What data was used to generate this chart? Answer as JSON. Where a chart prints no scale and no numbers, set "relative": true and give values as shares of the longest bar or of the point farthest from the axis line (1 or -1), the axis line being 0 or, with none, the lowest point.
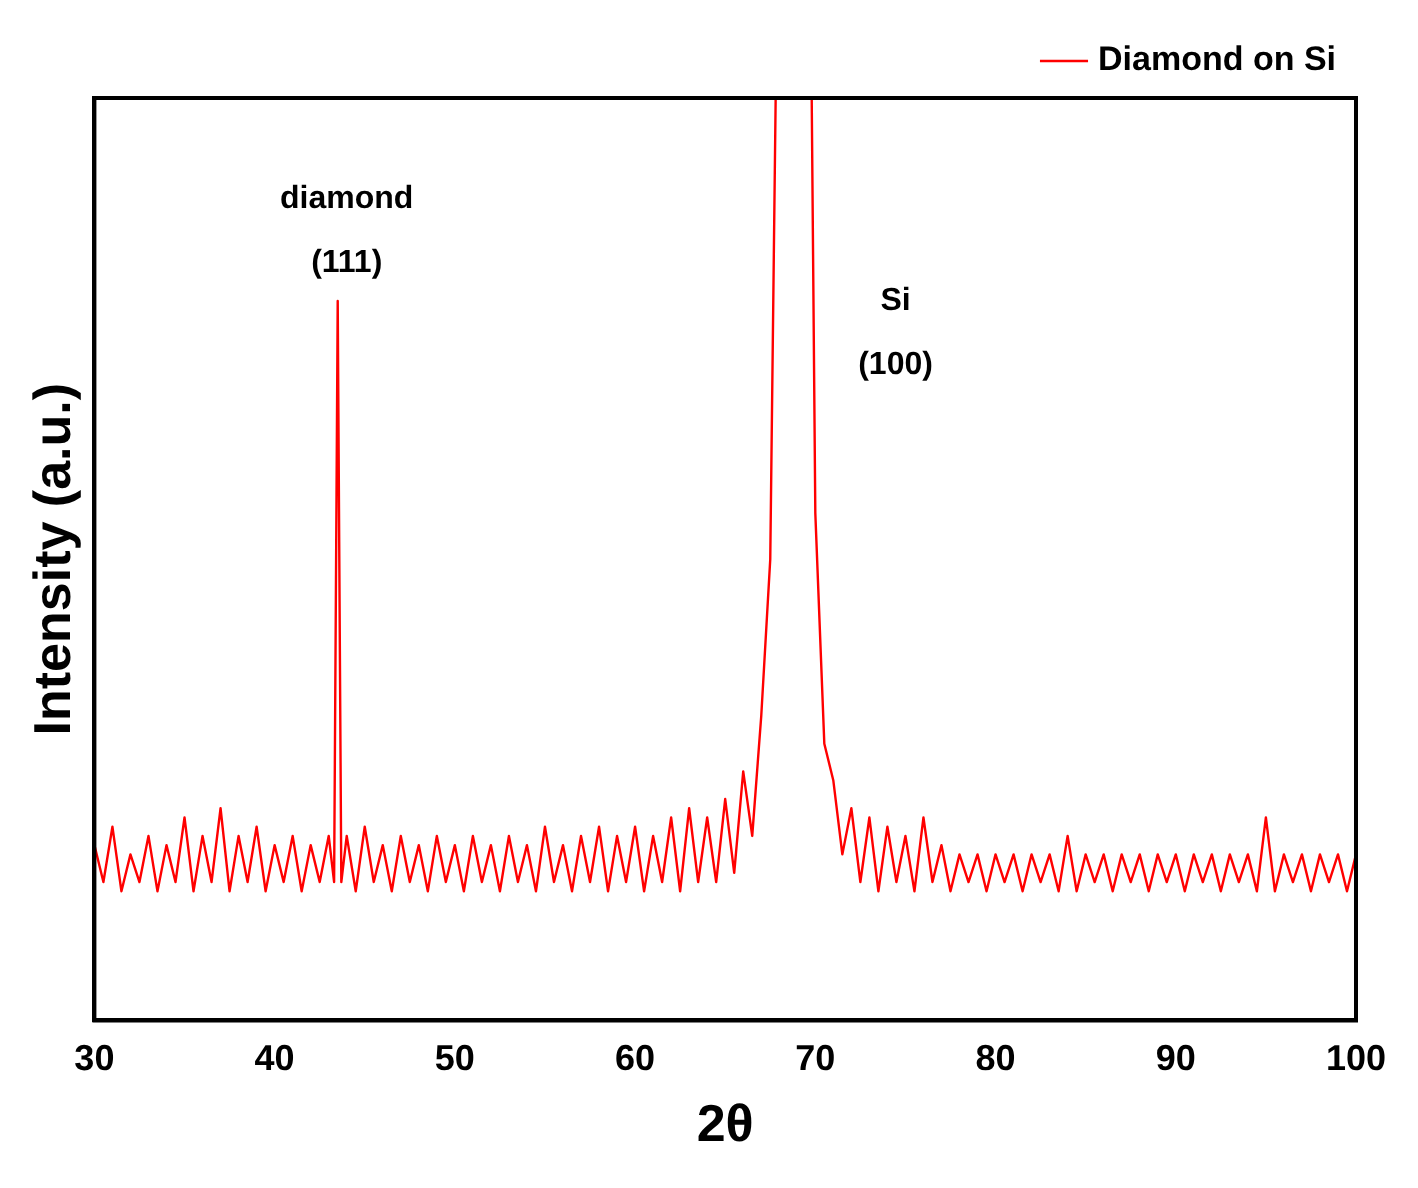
{
  "chart_data": {
    "type": "line",
    "relative": true,
    "xlabel": "2θ",
    "ylabel": "Intensity (a.u.)",
    "xlim": [
      30,
      100
    ],
    "xticks": [
      30,
      40,
      50,
      60,
      70,
      80,
      90,
      100
    ],
    "grid": false,
    "legend": "top right",
    "marker": "none",
    "line_style": "solid",
    "annotations": [
      "diamond (111)",
      "Si (100)"
    ],
    "series": [
      {
        "name": "Diamond on Si",
        "color": "#ff0000",
        "x": [
          30,
          30.5,
          31,
          31.5,
          32,
          32.5,
          33,
          33.5,
          34,
          34.5,
          35,
          35.5,
          36,
          36.5,
          37,
          37.5,
          38,
          38.5,
          39,
          39.5,
          40,
          40.5,
          41,
          41.5,
          42,
          42.5,
          43,
          43.3,
          43.5,
          43.7,
          44,
          44.5,
          45,
          45.5,
          46,
          46.5,
          47,
          47.5,
          48,
          48.5,
          49,
          49.5,
          50,
          50.5,
          51,
          51.5,
          52,
          52.5,
          53,
          53.5,
          54,
          54.5,
          55,
          55.5,
          56,
          56.5,
          57,
          57.5,
          58,
          58.5,
          59,
          59.5,
          60,
          60.5,
          61,
          61.5,
          62,
          62.5,
          63,
          63.5,
          64,
          64.5,
          65,
          65.5,
          66,
          66.5,
          67,
          67.5,
          67.8,
          69.8,
          70,
          70.5,
          71,
          71.5,
          72,
          72.5,
          73,
          73.5,
          74,
          74.5,
          75,
          75.5,
          76,
          76.5,
          77,
          77.5,
          78,
          78.5,
          79,
          79.5,
          80,
          80.5,
          81,
          81.5,
          82,
          82.5,
          83,
          83.5,
          84,
          84.5,
          85,
          85.5,
          86,
          86.5,
          87,
          87.5,
          88,
          88.5,
          89,
          89.5,
          90,
          90.5,
          91,
          91.5,
          92,
          92.5,
          93,
          93.5,
          94,
          94.5,
          95,
          95.5,
          96,
          96.5,
          97,
          97.5,
          98,
          98.5,
          99,
          99.5,
          100
        ],
        "values": [
          0.19,
          0.15,
          0.21,
          0.14,
          0.18,
          0.15,
          0.2,
          0.14,
          0.19,
          0.15,
          0.22,
          0.14,
          0.2,
          0.15,
          0.23,
          0.14,
          0.2,
          0.15,
          0.21,
          0.14,
          0.19,
          0.15,
          0.2,
          0.14,
          0.19,
          0.15,
          0.2,
          0.15,
          0.78,
          0.15,
          0.2,
          0.14,
          0.21,
          0.15,
          0.19,
          0.14,
          0.2,
          0.15,
          0.19,
          0.14,
          0.2,
          0.15,
          0.19,
          0.14,
          0.2,
          0.15,
          0.19,
          0.14,
          0.2,
          0.15,
          0.19,
          0.14,
          0.21,
          0.15,
          0.19,
          0.14,
          0.2,
          0.15,
          0.21,
          0.14,
          0.2,
          0.15,
          0.21,
          0.14,
          0.2,
          0.15,
          0.22,
          0.14,
          0.23,
          0.15,
          0.22,
          0.15,
          0.24,
          0.16,
          0.27,
          0.2,
          0.33,
          0.5,
          1,
          1,
          0.55,
          0.3,
          0.26,
          0.18,
          0.23,
          0.15,
          0.22,
          0.14,
          0.21,
          0.15,
          0.2,
          0.14,
          0.22,
          0.15,
          0.19,
          0.14,
          0.18,
          0.15,
          0.18,
          0.14,
          0.18,
          0.15,
          0.18,
          0.14,
          0.18,
          0.15,
          0.18,
          0.14,
          0.2,
          0.14,
          0.18,
          0.15,
          0.18,
          0.14,
          0.18,
          0.15,
          0.18,
          0.14,
          0.18,
          0.15,
          0.18,
          0.14,
          0.18,
          0.15,
          0.18,
          0.14,
          0.18,
          0.15,
          0.18,
          0.14,
          0.22,
          0.14,
          0.18,
          0.15,
          0.18,
          0.14,
          0.18,
          0.15,
          0.18,
          0.14,
          0.18
        ]
      }
    ]
  }
}
